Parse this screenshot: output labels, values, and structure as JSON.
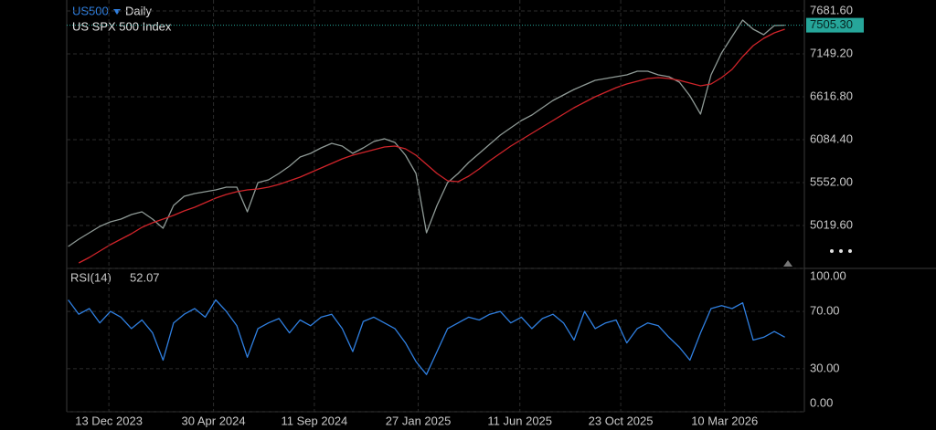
{
  "chart_data": [
    {
      "type": "line",
      "symbol": "US500",
      "interval": "Daily",
      "title": "US SPX 500 Index",
      "x": [
        "2023-10-20",
        "2023-11-03",
        "2023-11-17",
        "2023-12-01",
        "2023-12-15",
        "2023-12-29",
        "2024-01-12",
        "2024-01-26",
        "2024-02-09",
        "2024-02-23",
        "2024-03-08",
        "2024-03-22",
        "2024-04-05",
        "2024-04-19",
        "2024-05-03",
        "2024-05-17",
        "2024-05-31",
        "2024-06-14",
        "2024-06-28",
        "2024-07-12",
        "2024-07-26",
        "2024-08-09",
        "2024-08-23",
        "2024-09-06",
        "2024-09-20",
        "2024-10-04",
        "2024-10-18",
        "2024-11-01",
        "2024-11-15",
        "2024-11-29",
        "2024-12-13",
        "2024-12-27",
        "2025-01-10",
        "2025-01-24",
        "2025-02-07",
        "2025-02-21",
        "2025-03-07",
        "2025-03-21",
        "2025-04-04",
        "2025-04-18",
        "2025-05-02",
        "2025-05-16",
        "2025-05-30",
        "2025-06-13",
        "2025-06-27",
        "2025-07-11",
        "2025-07-25",
        "2025-08-08",
        "2025-08-22",
        "2025-09-05",
        "2025-09-19",
        "2025-10-03",
        "2025-10-17",
        "2025-10-31",
        "2025-11-14",
        "2025-11-28",
        "2025-12-12",
        "2025-12-26",
        "2026-01-09",
        "2026-01-23",
        "2026-02-06",
        "2026-02-20",
        "2026-03-06",
        "2026-03-20",
        "2026-04-03",
        "2026-04-17",
        "2026-05-01",
        "2026-05-15",
        "2026-05-29"
      ],
      "xlim": [
        "2023-10-18",
        "2026-06-24"
      ],
      "ylim": [
        4476,
        7818
      ],
      "yticks": [
        {
          "value": 5019.6,
          "label": "5019.60"
        },
        {
          "value": 5552,
          "label": "5552.00"
        },
        {
          "value": 6084.4,
          "label": "6084.40"
        },
        {
          "value": 6616.8,
          "label": "6616.80"
        },
        {
          "value": 7149.2,
          "label": "7149.20"
        },
        {
          "value": 7681.6,
          "label": "7681.60"
        }
      ],
      "grid": true,
      "series": [
        {
          "color": "#8f9a96",
          "values": [
            4759,
            4850,
            4929,
            5008,
            5065,
            5099,
            5156,
            5190,
            5099,
            4986,
            5269,
            5382,
            5416,
            5439,
            5462,
            5496,
            5496,
            5190,
            5552,
            5586,
            5666,
            5756,
            5870,
            5915,
            5983,
            6039,
            6005,
            5915,
            5983,
            6062,
            6096,
            6051,
            5892,
            5666,
            4929,
            5269,
            5552,
            5666,
            5802,
            5915,
            6028,
            6141,
            6232,
            6323,
            6391,
            6481,
            6572,
            6640,
            6708,
            6764,
            6821,
            6844,
            6866,
            6889,
            6934,
            6934,
            6889,
            6866,
            6798,
            6628,
            6402,
            6889,
            7161,
            7365,
            7569,
            7455,
            7387,
            7501,
            7505.3
          ]
        },
        {
          "color": "#d0242a",
          "values": [
            null,
            4555,
            4623,
            4703,
            4782,
            4850,
            4918,
            4997,
            5054,
            5099,
            5145,
            5201,
            5246,
            5303,
            5360,
            5405,
            5439,
            5462,
            5473,
            5496,
            5530,
            5575,
            5620,
            5677,
            5734,
            5790,
            5847,
            5892,
            5926,
            5960,
            5994,
            6005,
            5971,
            5892,
            5779,
            5666,
            5575,
            5564,
            5632,
            5722,
            5824,
            5915,
            6005,
            6085,
            6164,
            6243,
            6323,
            6402,
            6481,
            6549,
            6617,
            6674,
            6730,
            6776,
            6810,
            6844,
            6855,
            6844,
            6821,
            6787,
            6753,
            6776,
            6855,
            6957,
            7116,
            7252,
            7342,
            7410,
            7455
          ]
        }
      ],
      "price_marker": {
        "value": 7505.3,
        "label": "7505.30",
        "color": "#26a69a"
      }
    },
    {
      "type": "line",
      "title": "RSI(14)",
      "x": [
        "2023-10-20",
        "2023-11-03",
        "2023-11-17",
        "2023-12-01",
        "2023-12-15",
        "2023-12-29",
        "2024-01-12",
        "2024-01-26",
        "2024-02-09",
        "2024-02-23",
        "2024-03-08",
        "2024-03-22",
        "2024-04-05",
        "2024-04-19",
        "2024-05-03",
        "2024-05-17",
        "2024-05-31",
        "2024-06-14",
        "2024-06-28",
        "2024-07-12",
        "2024-07-26",
        "2024-08-09",
        "2024-08-23",
        "2024-09-06",
        "2024-09-20",
        "2024-10-04",
        "2024-10-18",
        "2024-11-01",
        "2024-11-15",
        "2024-11-29",
        "2024-12-13",
        "2024-12-27",
        "2025-01-10",
        "2025-01-24",
        "2025-02-07",
        "2025-02-21",
        "2025-03-07",
        "2025-03-21",
        "2025-04-04",
        "2025-04-18",
        "2025-05-02",
        "2025-05-16",
        "2025-05-30",
        "2025-06-13",
        "2025-06-27",
        "2025-07-11",
        "2025-07-25",
        "2025-08-08",
        "2025-08-22",
        "2025-09-05",
        "2025-09-19",
        "2025-10-03",
        "2025-10-17",
        "2025-10-31",
        "2025-11-14",
        "2025-11-28",
        "2025-12-12",
        "2025-12-26",
        "2026-01-09",
        "2026-01-23",
        "2026-02-06",
        "2026-02-20",
        "2026-03-06",
        "2026-03-20",
        "2026-04-03",
        "2026-04-17",
        "2026-05-01",
        "2026-05-15",
        "2026-05-29"
      ],
      "xlim": [
        "2023-10-18",
        "2026-06-24"
      ],
      "xticks": [
        {
          "value": "2023-12-13",
          "label": "13 Dec 2023"
        },
        {
          "value": "2024-04-30",
          "label": "30 Apr 2024"
        },
        {
          "value": "2024-09-11",
          "label": "11 Sep 2024"
        },
        {
          "value": "2025-01-27",
          "label": "27 Jan 2025"
        },
        {
          "value": "2025-06-11",
          "label": "11 Jun 2025"
        },
        {
          "value": "2025-10-23",
          "label": "23 Oct 2025"
        },
        {
          "value": "2026-03-10",
          "label": "10 Mar 2026"
        }
      ],
      "ylim": [
        0,
        100
      ],
      "yticks": [
        {
          "value": 0,
          "label": "0.00"
        },
        {
          "value": 30,
          "label": "30.00"
        },
        {
          "value": 70,
          "label": "70.00"
        },
        {
          "value": 100,
          "label": "100.00"
        }
      ],
      "grid": true,
      "series": [
        {
          "color": "#2f7fe0",
          "values": [
            78,
            68,
            72,
            62,
            70,
            66,
            58,
            64,
            55,
            36,
            62,
            68,
            72,
            66,
            78,
            70,
            60,
            38,
            58,
            62,
            65,
            55,
            64,
            60,
            66,
            68,
            58,
            42,
            63,
            66,
            62,
            58,
            48,
            35,
            26,
            42,
            58,
            62,
            66,
            64,
            68,
            70,
            62,
            66,
            58,
            65,
            68,
            62,
            50,
            70,
            58,
            62,
            64,
            48,
            58,
            62,
            60,
            52,
            45,
            36,
            55,
            72,
            74,
            72,
            76,
            50,
            52,
            56,
            52.07
          ]
        }
      ]
    }
  ]
}
